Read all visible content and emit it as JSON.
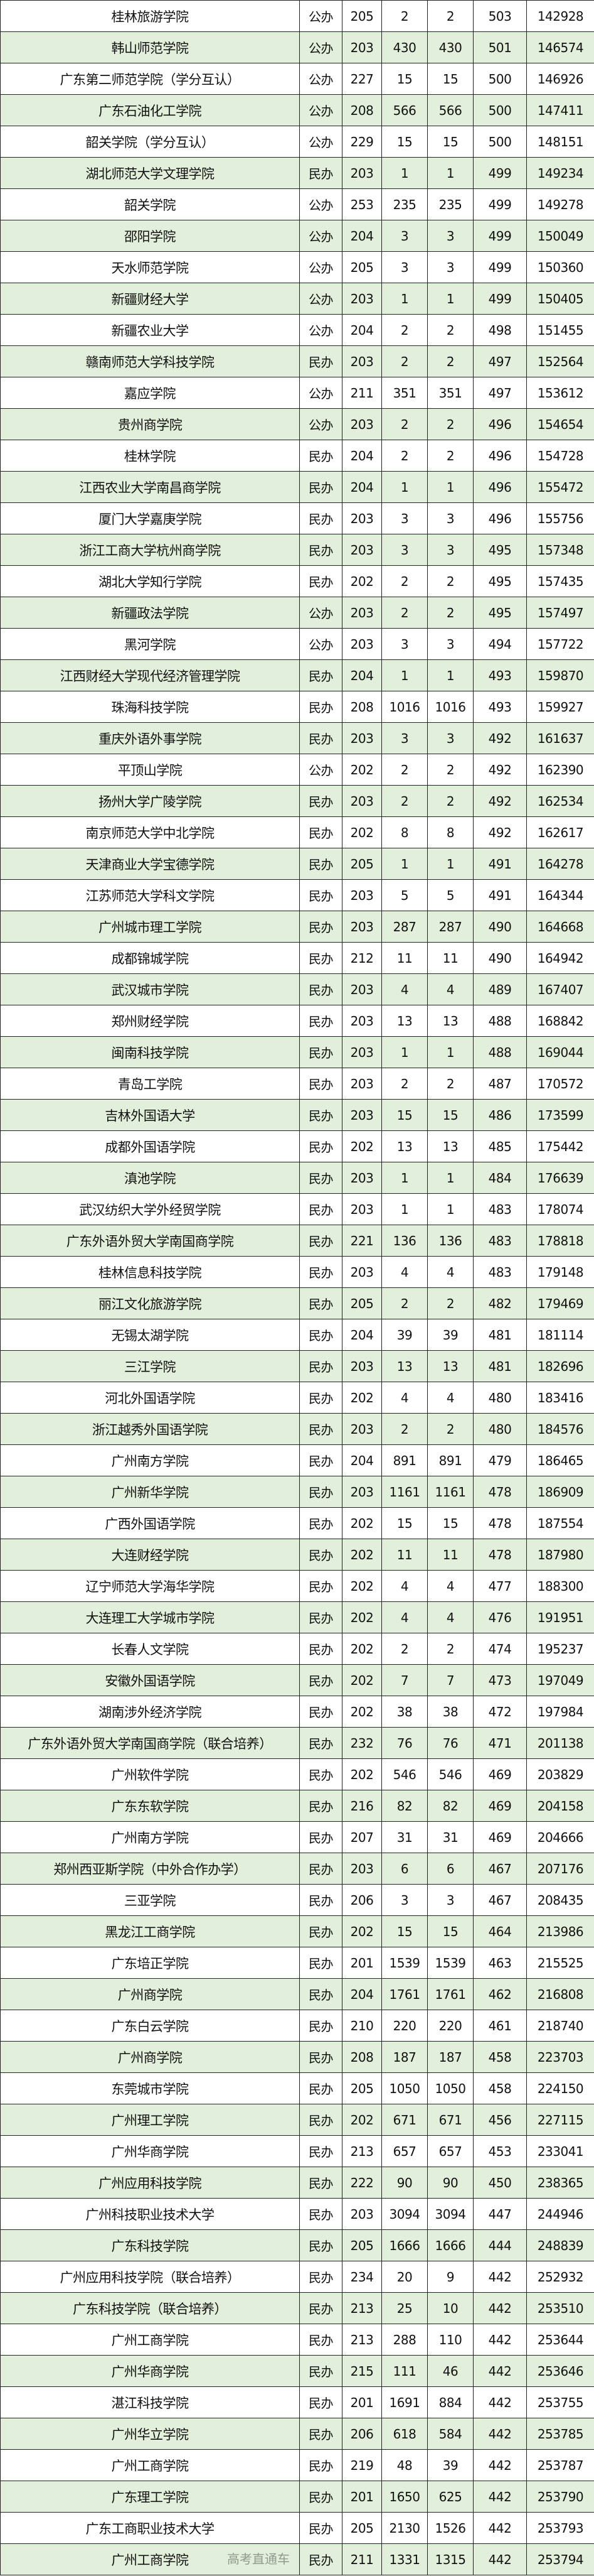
{
  "table": {
    "colors": {
      "alt_row": "#e2efda",
      "row": "#ffffff",
      "border": "#222222"
    },
    "rows": [
      [
        "桂林旅游学院",
        "公办",
        "205",
        "2",
        "2",
        "503",
        "142928"
      ],
      [
        "韩山师范学院",
        "公办",
        "203",
        "430",
        "430",
        "501",
        "146574"
      ],
      [
        "广东第二师范学院（学分互认）",
        "公办",
        "227",
        "15",
        "15",
        "500",
        "146926"
      ],
      [
        "广东石油化工学院",
        "公办",
        "208",
        "566",
        "566",
        "500",
        "147411"
      ],
      [
        "韶关学院（学分互认）",
        "公办",
        "229",
        "15",
        "15",
        "500",
        "148151"
      ],
      [
        "湖北师范大学文理学院",
        "民办",
        "203",
        "1",
        "1",
        "499",
        "149234"
      ],
      [
        "韶关学院",
        "公办",
        "253",
        "235",
        "235",
        "499",
        "149278"
      ],
      [
        "邵阳学院",
        "公办",
        "204",
        "3",
        "3",
        "499",
        "150049"
      ],
      [
        "天水师范学院",
        "公办",
        "205",
        "3",
        "3",
        "499",
        "150360"
      ],
      [
        "新疆财经大学",
        "公办",
        "203",
        "1",
        "1",
        "499",
        "150405"
      ],
      [
        "新疆农业大学",
        "公办",
        "204",
        "2",
        "2",
        "498",
        "151455"
      ],
      [
        "赣南师范大学科技学院",
        "民办",
        "203",
        "2",
        "2",
        "497",
        "152564"
      ],
      [
        "嘉应学院",
        "公办",
        "211",
        "351",
        "351",
        "497",
        "153612"
      ],
      [
        "贵州商学院",
        "公办",
        "203",
        "2",
        "2",
        "496",
        "154654"
      ],
      [
        "桂林学院",
        "民办",
        "204",
        "2",
        "2",
        "496",
        "154728"
      ],
      [
        "江西农业大学南昌商学院",
        "民办",
        "204",
        "1",
        "1",
        "496",
        "155472"
      ],
      [
        "厦门大学嘉庚学院",
        "民办",
        "203",
        "3",
        "3",
        "496",
        "155756"
      ],
      [
        "浙江工商大学杭州商学院",
        "民办",
        "203",
        "3",
        "3",
        "495",
        "157348"
      ],
      [
        "湖北大学知行学院",
        "民办",
        "202",
        "2",
        "2",
        "495",
        "157435"
      ],
      [
        "新疆政法学院",
        "公办",
        "203",
        "2",
        "2",
        "495",
        "157497"
      ],
      [
        "黑河学院",
        "公办",
        "203",
        "3",
        "3",
        "494",
        "157722"
      ],
      [
        "江西财经大学现代经济管理学院",
        "民办",
        "204",
        "1",
        "1",
        "493",
        "159870"
      ],
      [
        "珠海科技学院",
        "民办",
        "208",
        "1016",
        "1016",
        "493",
        "159927"
      ],
      [
        "重庆外语外事学院",
        "民办",
        "203",
        "3",
        "3",
        "492",
        "161637"
      ],
      [
        "平顶山学院",
        "公办",
        "202",
        "2",
        "2",
        "492",
        "162390"
      ],
      [
        "扬州大学广陵学院",
        "民办",
        "203",
        "2",
        "2",
        "492",
        "162534"
      ],
      [
        "南京师范大学中北学院",
        "民办",
        "202",
        "8",
        "8",
        "492",
        "162617"
      ],
      [
        "天津商业大学宝德学院",
        "民办",
        "205",
        "1",
        "1",
        "491",
        "164278"
      ],
      [
        "江苏师范大学科文学院",
        "民办",
        "203",
        "5",
        "5",
        "491",
        "164344"
      ],
      [
        "广州城市理工学院",
        "民办",
        "203",
        "287",
        "287",
        "490",
        "164668"
      ],
      [
        "成都锦城学院",
        "民办",
        "212",
        "11",
        "11",
        "490",
        "164942"
      ],
      [
        "武汉城市学院",
        "民办",
        "203",
        "4",
        "4",
        "489",
        "167407"
      ],
      [
        "郑州财经学院",
        "民办",
        "203",
        "13",
        "13",
        "488",
        "168842"
      ],
      [
        "闽南科技学院",
        "民办",
        "203",
        "1",
        "1",
        "488",
        "169044"
      ],
      [
        "青岛工学院",
        "民办",
        "203",
        "2",
        "2",
        "487",
        "170572"
      ],
      [
        "吉林外国语大学",
        "民办",
        "203",
        "15",
        "15",
        "486",
        "173599"
      ],
      [
        "成都外国语学院",
        "民办",
        "202",
        "13",
        "13",
        "485",
        "175442"
      ],
      [
        "滇池学院",
        "民办",
        "203",
        "1",
        "1",
        "484",
        "176639"
      ],
      [
        "武汉纺织大学外经贸学院",
        "民办",
        "203",
        "1",
        "1",
        "483",
        "178074"
      ],
      [
        "广东外语外贸大学南国商学院",
        "民办",
        "221",
        "136",
        "136",
        "483",
        "178818"
      ],
      [
        "桂林信息科技学院",
        "民办",
        "203",
        "4",
        "4",
        "483",
        "179148"
      ],
      [
        "丽江文化旅游学院",
        "民办",
        "205",
        "2",
        "2",
        "482",
        "179469"
      ],
      [
        "无锡太湖学院",
        "民办",
        "204",
        "39",
        "39",
        "481",
        "181114"
      ],
      [
        "三江学院",
        "民办",
        "203",
        "13",
        "13",
        "481",
        "182696"
      ],
      [
        "河北外国语学院",
        "民办",
        "202",
        "4",
        "4",
        "480",
        "183416"
      ],
      [
        "浙江越秀外国语学院",
        "民办",
        "203",
        "2",
        "2",
        "480",
        "184576"
      ],
      [
        "广州南方学院",
        "民办",
        "204",
        "891",
        "891",
        "479",
        "186465"
      ],
      [
        "广州新华学院",
        "民办",
        "203",
        "1161",
        "1161",
        "478",
        "186909"
      ],
      [
        "广西外国语学院",
        "民办",
        "202",
        "15",
        "15",
        "478",
        "187554"
      ],
      [
        "大连财经学院",
        "民办",
        "202",
        "11",
        "11",
        "478",
        "187980"
      ],
      [
        "辽宁师范大学海华学院",
        "民办",
        "202",
        "4",
        "4",
        "477",
        "188300"
      ],
      [
        "大连理工大学城市学院",
        "民办",
        "202",
        "4",
        "4",
        "476",
        "191951"
      ],
      [
        "长春人文学院",
        "民办",
        "202",
        "2",
        "2",
        "474",
        "195237"
      ],
      [
        "安徽外国语学院",
        "民办",
        "202",
        "7",
        "7",
        "473",
        "197049"
      ],
      [
        "湖南涉外经济学院",
        "民办",
        "202",
        "38",
        "38",
        "472",
        "197984"
      ],
      [
        "广东外语外贸大学南国商学院（联合培养）",
        "民办",
        "232",
        "76",
        "76",
        "471",
        "201138"
      ],
      [
        "广州软件学院",
        "民办",
        "202",
        "546",
        "546",
        "469",
        "203829"
      ],
      [
        "广东东软学院",
        "民办",
        "216",
        "82",
        "82",
        "469",
        "204158"
      ],
      [
        "广州南方学院",
        "民办",
        "207",
        "31",
        "31",
        "469",
        "204666"
      ],
      [
        "郑州西亚斯学院（中外合作办学）",
        "民办",
        "203",
        "6",
        "6",
        "467",
        "207176"
      ],
      [
        "三亚学院",
        "民办",
        "206",
        "3",
        "3",
        "467",
        "208435"
      ],
      [
        "黑龙江工商学院",
        "民办",
        "202",
        "15",
        "15",
        "464",
        "213986"
      ],
      [
        "广东培正学院",
        "民办",
        "201",
        "1539",
        "1539",
        "463",
        "215525"
      ],
      [
        "广州商学院",
        "民办",
        "204",
        "1761",
        "1761",
        "462",
        "216808"
      ],
      [
        "广东白云学院",
        "民办",
        "210",
        "220",
        "220",
        "461",
        "218740"
      ],
      [
        "广州商学院",
        "民办",
        "208",
        "187",
        "187",
        "458",
        "223703"
      ],
      [
        "东莞城市学院",
        "民办",
        "205",
        "1050",
        "1050",
        "458",
        "224150"
      ],
      [
        "广州理工学院",
        "民办",
        "202",
        "671",
        "671",
        "456",
        "227115"
      ],
      [
        "广州华商学院",
        "民办",
        "213",
        "657",
        "657",
        "453",
        "233041"
      ],
      [
        "广州应用科技学院",
        "民办",
        "222",
        "90",
        "90",
        "450",
        "238365"
      ],
      [
        "广州科技职业技术大学",
        "民办",
        "203",
        "3094",
        "3094",
        "447",
        "244946"
      ],
      [
        "广东科技学院",
        "民办",
        "205",
        "1666",
        "1666",
        "444",
        "248839"
      ],
      [
        "广州应用科技学院（联合培养）",
        "民办",
        "234",
        "20",
        "9",
        "442",
        "252932"
      ],
      [
        "广东科技学院（联合培养）",
        "民办",
        "213",
        "25",
        "10",
        "442",
        "253510"
      ],
      [
        "广州工商学院",
        "民办",
        "213",
        "288",
        "110",
        "442",
        "253644"
      ],
      [
        "广州华商学院",
        "民办",
        "215",
        "111",
        "46",
        "442",
        "253646"
      ],
      [
        "湛江科技学院",
        "民办",
        "201",
        "1691",
        "884",
        "442",
        "253755"
      ],
      [
        "广州华立学院",
        "民办",
        "206",
        "618",
        "584",
        "442",
        "253785"
      ],
      [
        "广州工商学院",
        "民办",
        "219",
        "48",
        "39",
        "442",
        "253787"
      ],
      [
        "广东理工学院",
        "民办",
        "201",
        "1650",
        "625",
        "442",
        "253790"
      ],
      [
        "广东工商职业技术大学",
        "民办",
        "205",
        "2130",
        "1526",
        "442",
        "253793"
      ],
      [
        "广州工商学院",
        "民办",
        "211",
        "1331",
        "1315",
        "442",
        "253794"
      ]
    ]
  },
  "watermark": {
    "text": "高考直通车"
  }
}
